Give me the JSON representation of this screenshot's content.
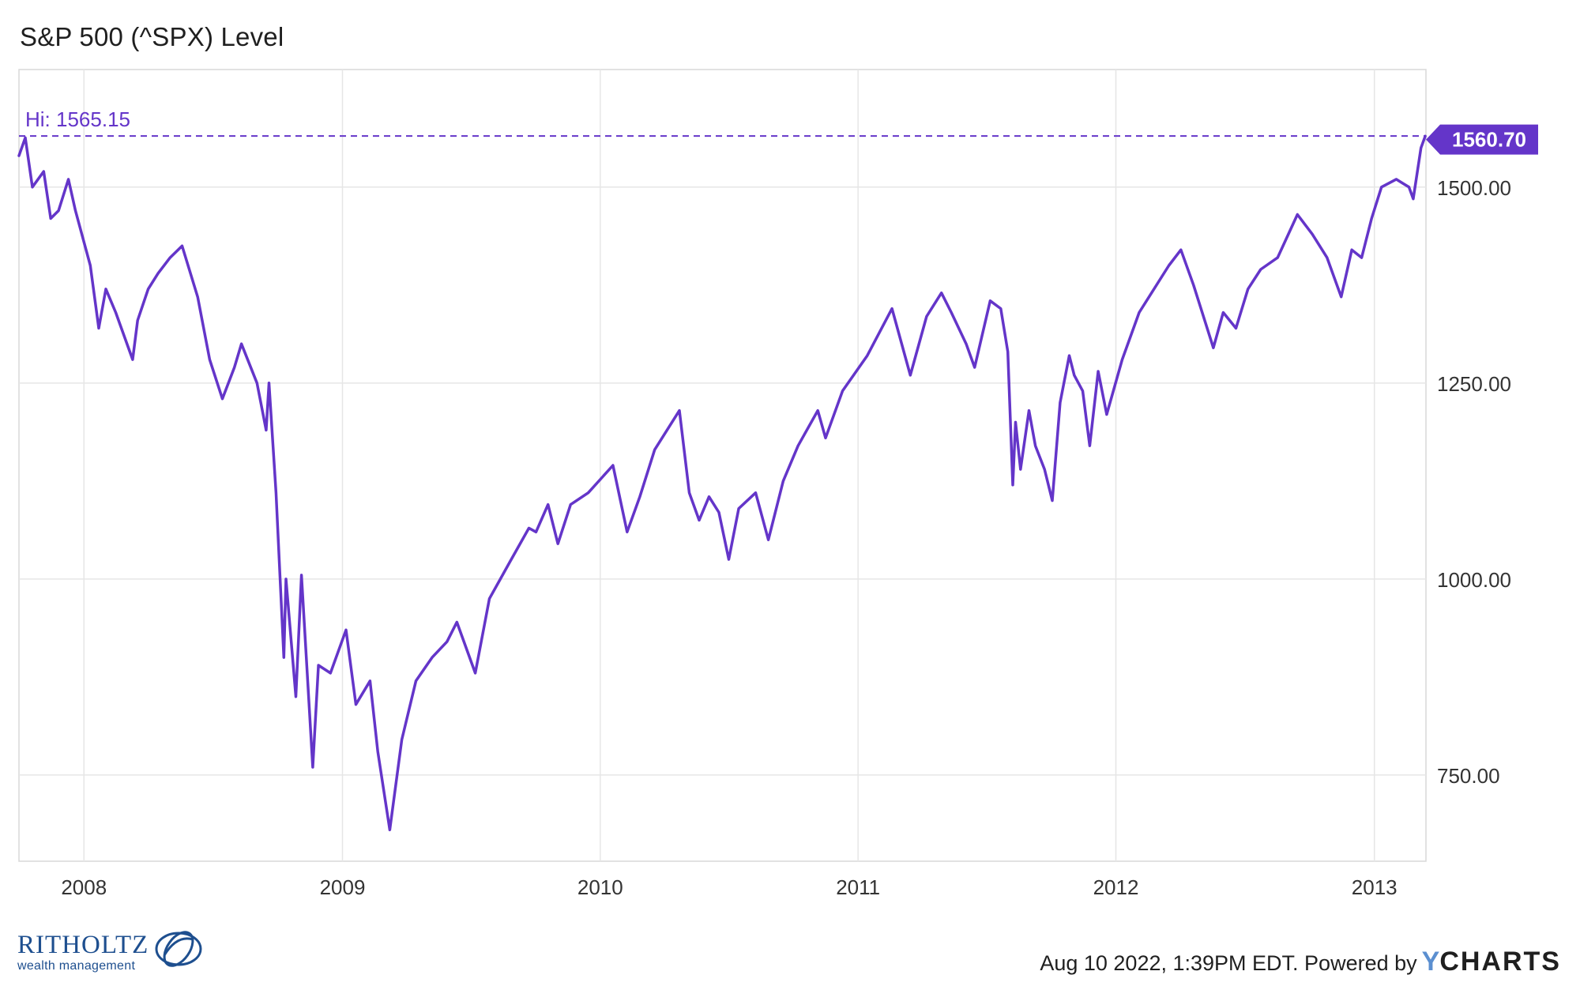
{
  "chart_data": {
    "type": "line",
    "title": "S&P 500 (^SPX) Level",
    "x_tick_labels": [
      "2008",
      "2009",
      "2010",
      "2011",
      "2012",
      "2013"
    ],
    "y_tick_labels": [
      "1500.00",
      "1250.00",
      "1000.00",
      "750.00"
    ],
    "ylim": [
      640,
      1650
    ],
    "xlim": [
      "2007-10-01",
      "2013-03-15"
    ],
    "grid": true,
    "series": [
      {
        "color": "#6435c9",
        "x": [
          "2007-10-01",
          "2007-10-10",
          "2007-10-20",
          "2007-11-05",
          "2007-11-15",
          "2007-11-26",
          "2007-12-10",
          "2007-12-20",
          "2008-01-10",
          "2008-01-22",
          "2008-02-01",
          "2008-02-15",
          "2008-03-10",
          "2008-03-17",
          "2008-04-01",
          "2008-04-15",
          "2008-05-02",
          "2008-05-19",
          "2008-06-10",
          "2008-06-27",
          "2008-07-15",
          "2008-08-01",
          "2008-08-11",
          "2008-09-02",
          "2008-09-15",
          "2008-09-19",
          "2008-09-29",
          "2008-10-10",
          "2008-10-13",
          "2008-10-27",
          "2008-11-04",
          "2008-11-20",
          "2008-11-28",
          "2008-12-15",
          "2009-01-06",
          "2009-01-20",
          "2009-02-09",
          "2009-02-20",
          "2009-03-09",
          "2009-03-26",
          "2009-04-15",
          "2009-05-08",
          "2009-05-29",
          "2009-06-12",
          "2009-07-08",
          "2009-07-28",
          "2009-08-28",
          "2009-09-22",
          "2009-10-02",
          "2009-10-19",
          "2009-11-02",
          "2009-11-20",
          "2009-12-15",
          "2010-01-19",
          "2010-02-08",
          "2010-02-26",
          "2010-03-19",
          "2010-04-23",
          "2010-05-07",
          "2010-05-21",
          "2010-06-04",
          "2010-06-18",
          "2010-07-02",
          "2010-07-16",
          "2010-08-09",
          "2010-08-27",
          "2010-09-17",
          "2010-10-08",
          "2010-11-05",
          "2010-11-16",
          "2010-12-10",
          "2011-01-14",
          "2011-02-18",
          "2011-03-16",
          "2011-04-08",
          "2011-04-29",
          "2011-05-13",
          "2011-06-03",
          "2011-06-15",
          "2011-07-07",
          "2011-07-22",
          "2011-08-01",
          "2011-08-08",
          "2011-08-12",
          "2011-08-19",
          "2011-08-31",
          "2011-09-09",
          "2011-09-22",
          "2011-10-03",
          "2011-10-14",
          "2011-10-27",
          "2011-11-03",
          "2011-11-15",
          "2011-11-25",
          "2011-12-07",
          "2011-12-19",
          "2012-01-10",
          "2012-02-03",
          "2012-03-16",
          "2012-04-02",
          "2012-04-20",
          "2012-05-18",
          "2012-06-01",
          "2012-06-19",
          "2012-07-06",
          "2012-07-24",
          "2012-08-17",
          "2012-09-14",
          "2012-10-05",
          "2012-10-26",
          "2012-11-15",
          "2012-11-30",
          "2012-12-14",
          "2012-12-28",
          "2013-01-11",
          "2013-02-01",
          "2013-02-19",
          "2013-02-25",
          "2013-03-08",
          "2013-03-14"
        ],
        "y": [
          1540,
          1563,
          1500,
          1520,
          1460,
          1470,
          1510,
          1470,
          1400,
          1320,
          1370,
          1340,
          1280,
          1330,
          1370,
          1390,
          1410,
          1425,
          1360,
          1280,
          1230,
          1270,
          1300,
          1250,
          1190,
          1250,
          1110,
          900,
          1000,
          850,
          1005,
          760,
          890,
          880,
          935,
          840,
          870,
          780,
          680,
          795,
          870,
          900,
          920,
          945,
          880,
          975,
          1025,
          1065,
          1060,
          1095,
          1045,
          1095,
          1110,
          1145,
          1060,
          1105,
          1165,
          1215,
          1110,
          1075,
          1105,
          1085,
          1025,
          1090,
          1110,
          1050,
          1125,
          1170,
          1215,
          1180,
          1240,
          1285,
          1345,
          1260,
          1335,
          1365,
          1340,
          1300,
          1270,
          1355,
          1345,
          1290,
          1120,
          1200,
          1140,
          1215,
          1170,
          1140,
          1100,
          1225,
          1285,
          1260,
          1240,
          1170,
          1265,
          1210,
          1280,
          1340,
          1400,
          1420,
          1375,
          1295,
          1340,
          1320,
          1370,
          1395,
          1410,
          1465,
          1440,
          1410,
          1360,
          1420,
          1410,
          1460,
          1500,
          1510,
          1500,
          1485,
          1550,
          1565
        ]
      }
    ],
    "high_label": "Hi: 1565.15",
    "high_value": 1565.15,
    "last_value": 1560.7,
    "last_label": "1560.70"
  },
  "footer": {
    "logo_name": "RITHOLTZ",
    "logo_sub": "wealth management",
    "timestamp_text": "Aug 10 2022, 1:39PM EDT. Powered by",
    "brand_y": "Y",
    "brand_rest": "CHARTS"
  }
}
